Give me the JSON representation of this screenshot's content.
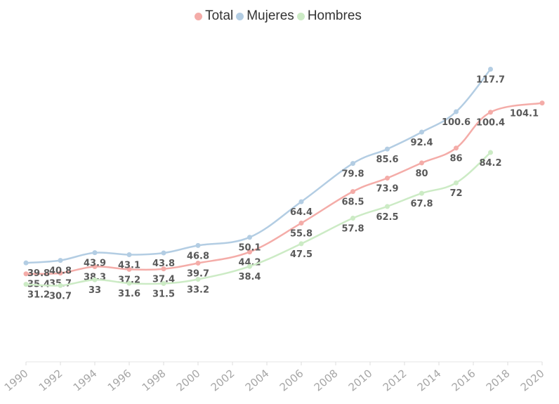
{
  "chart_data": {
    "type": "line",
    "title": "",
    "xlabel": "",
    "ylabel": "",
    "x_ticks": [
      "1990",
      "1992",
      "1994",
      "1996",
      "1998",
      "2000",
      "2002",
      "2004",
      "2006",
      "2008",
      "2010",
      "2012",
      "2014",
      "2016",
      "2018",
      "2020"
    ],
    "xlim": [
      1990,
      2020
    ],
    "ylim": [
      0,
      130
    ],
    "grid": false,
    "legend_position": "top-center",
    "series": [
      {
        "name": "Total",
        "color": "#f4aca8",
        "x": [
          1990,
          1992,
          1994,
          1996,
          1998,
          2000,
          2003,
          2006,
          2009,
          2011,
          2013,
          2015,
          2017,
          2020
        ],
        "values": [
          35.4,
          35.7,
          38.3,
          37.2,
          37.4,
          39.7,
          44.2,
          55.8,
          68.5,
          73.9,
          80,
          86,
          100.4,
          104.1
        ],
        "labels": [
          "35.4",
          "35.7",
          "38.3",
          "37.2",
          "37.4",
          "39.7",
          "44.2",
          "55.8",
          "68.5",
          "73.9",
          "80",
          "86",
          "100.4",
          "104.1"
        ]
      },
      {
        "name": "Mujeres",
        "color": "#b3cde3",
        "x": [
          1990,
          1992,
          1994,
          1996,
          1998,
          2000,
          2003,
          2006,
          2009,
          2011,
          2013,
          2015,
          2017
        ],
        "values": [
          39.8,
          40.8,
          43.9,
          43.1,
          43.8,
          46.8,
          50.1,
          64.4,
          79.8,
          85.6,
          92.4,
          100.6,
          117.7
        ],
        "labels": [
          "39.8",
          "40.8",
          "43.9",
          "43.1",
          "43.8",
          "46.8",
          "50.1",
          "64.4",
          "79.8",
          "85.6",
          "92.4",
          "100.6",
          "117.7"
        ]
      },
      {
        "name": "Hombres",
        "color": "#ccebc5",
        "x": [
          1990,
          1992,
          1994,
          1996,
          1998,
          2000,
          2003,
          2006,
          2009,
          2011,
          2013,
          2015,
          2017
        ],
        "values": [
          31.2,
          30.7,
          33,
          31.6,
          31.5,
          33.2,
          38.4,
          47.5,
          57.8,
          62.5,
          67.8,
          72,
          84.2
        ],
        "labels": [
          "31.2",
          "30.7",
          "33",
          "31.6",
          "31.5",
          "33.2",
          "38.4",
          "47.5",
          "57.8",
          "62.5",
          "67.8",
          "72",
          "84.2"
        ]
      }
    ]
  }
}
